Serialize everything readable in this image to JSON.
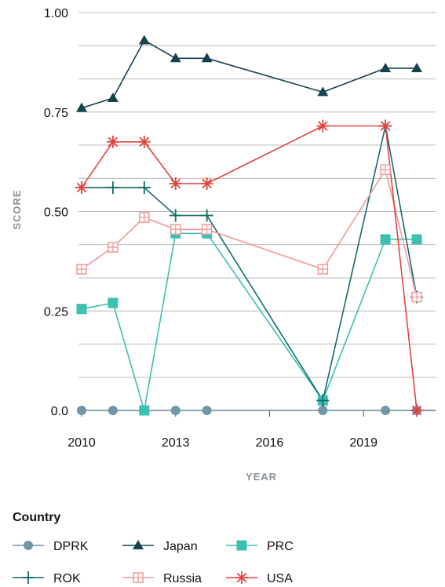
{
  "chart_data": {
    "type": "line",
    "xlabel": "YEAR",
    "ylabel": "SCORE",
    "xlim": [
      2009.9,
      2021.3
    ],
    "ylim": [
      0,
      1.0
    ],
    "x_ticks": [
      2010,
      2013,
      2016,
      2019
    ],
    "y_ticks": [
      0,
      0.25,
      0.5,
      0.75,
      1.0
    ],
    "y_tick_labels": [
      "0.0",
      "0.25",
      "0.50",
      "0.75",
      "1.00"
    ],
    "y_gridlines": [
      0,
      0.083,
      0.167,
      0.25,
      0.333,
      0.417,
      0.5,
      0.583,
      0.667,
      0.75,
      0.833,
      0.917,
      1.0
    ],
    "legend": {
      "title": "Country",
      "placement": "bottom"
    },
    "series": [
      {
        "name": "DPRK",
        "color": "#6f97a8",
        "marker": "circle",
        "x": [
          2010,
          2011,
          2012,
          2013,
          2014,
          2017.7,
          2019.7,
          2020.7
        ],
        "y": [
          0,
          0,
          0,
          0,
          0,
          0,
          0,
          0
        ]
      },
      {
        "name": "Japan",
        "color": "#16414e",
        "marker": "triangle",
        "x": [
          2010,
          2011,
          2012,
          2013,
          2014,
          2017.7,
          2019.7,
          2020.7
        ],
        "y": [
          0.76,
          0.785,
          0.93,
          0.885,
          0.885,
          0.8,
          0.86,
          0.86
        ]
      },
      {
        "name": "PRC",
        "color": "#3dbfb1",
        "marker": "square",
        "x": [
          2010,
          2011,
          2012,
          2013,
          2014,
          2017.7,
          2019.7,
          2020.7
        ],
        "y": [
          0.255,
          0.27,
          0,
          0.445,
          0.445,
          0.025,
          0.43,
          0.43
        ]
      },
      {
        "name": "ROK",
        "color": "#136b6b",
        "marker": "plus",
        "x": [
          2010,
          2011,
          2012,
          2013,
          2014,
          2017.7,
          2019.7,
          2020.7
        ],
        "y": [
          0.56,
          0.56,
          0.56,
          0.49,
          0.49,
          0.025,
          0.715,
          0.285
        ]
      },
      {
        "name": "Russia",
        "color": "#ef9a9a",
        "marker": "boxplus",
        "x": [
          2010,
          2011,
          2012,
          2013,
          2014,
          2017.7,
          2019.7,
          2020.7
        ],
        "y": [
          0.355,
          0.41,
          0.485,
          0.455,
          0.455,
          0.355,
          0.605,
          0.285
        ]
      },
      {
        "name": "USA",
        "color": "#e2443f",
        "marker": "asterisk",
        "x": [
          2010,
          2011,
          2012,
          2013,
          2014,
          2017.7,
          2019.7,
          2020.7
        ],
        "y": [
          0.56,
          0.675,
          0.675,
          0.57,
          0.57,
          0.715,
          0.715,
          0
        ]
      }
    ]
  }
}
